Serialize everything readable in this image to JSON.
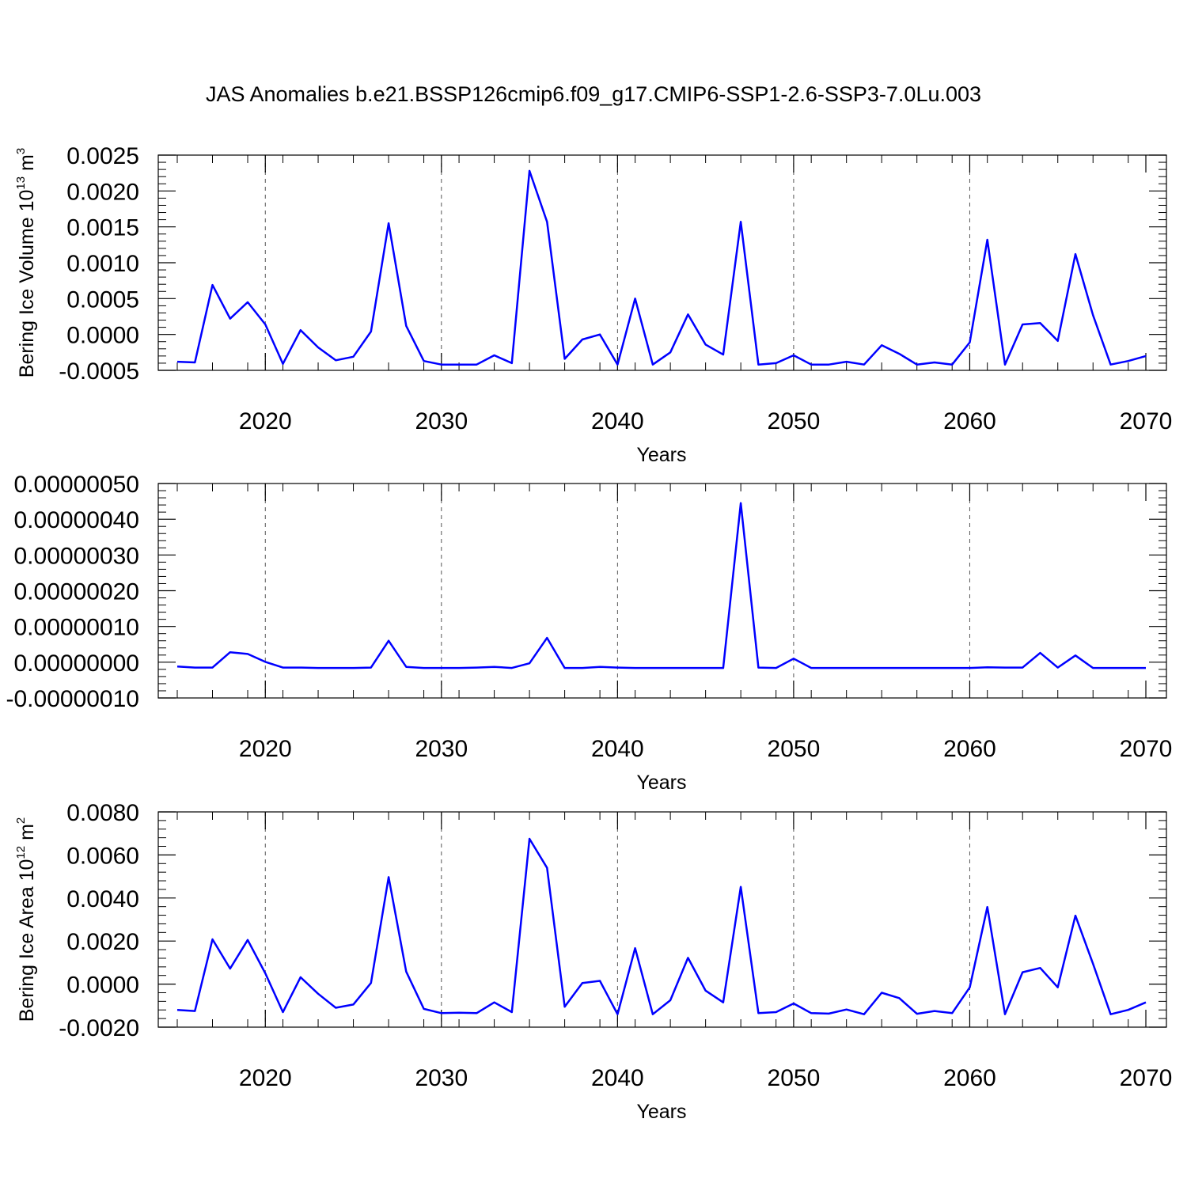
{
  "figure": {
    "title": "JAS Anomalies b.e21.BSSP126cmip6.f09_g17.CMIP6-SSP1-2.6-SSP3-7.0Lu.003"
  },
  "chart_data": [
    {
      "type": "line",
      "title": "",
      "xlabel": "Years",
      "ylabel": "Bering Ice Volume 10",
      "ylabel_sup": "13",
      "ylabel_unit": " m",
      "ylabel_unit_sup": "3",
      "xlim": [
        2015,
        2070
      ],
      "ylim": [
        -0.0005,
        0.0025
      ],
      "x_ticks": [
        "2020",
        "2030",
        "2040",
        "2050",
        "2060",
        "2070"
      ],
      "y_ticks": [
        "-0.0005",
        "0.0000",
        "0.0005",
        "0.0010",
        "0.0015",
        "0.0020",
        "0.0025"
      ],
      "grid": "vertical dashed at major x ticks",
      "line_color": "#0000ff",
      "series": [
        {
          "x": [
            2015,
            2016,
            2017,
            2018,
            2019,
            2020,
            2021,
            2022,
            2023,
            2024,
            2025,
            2026,
            2027,
            2028,
            2029,
            2030,
            2031,
            2032,
            2033,
            2034,
            2035,
            2036,
            2037,
            2038,
            2039,
            2040,
            2041,
            2042,
            2043,
            2044,
            2045,
            2046,
            2047,
            2048,
            2049,
            2050,
            2051,
            2052,
            2053,
            2054,
            2055,
            2056,
            2057,
            2058,
            2059,
            2060,
            2061,
            2062,
            2063,
            2064,
            2065,
            2066,
            2067,
            2068,
            2069,
            2070
          ],
          "values": [
            -0.00038,
            -0.00039,
            0.00069,
            0.00022,
            0.00045,
            0.00014,
            -0.00041,
            6e-05,
            -0.00018,
            -0.00036,
            -0.00031,
            4e-05,
            0.00155,
            0.00012,
            -0.00037,
            -0.00042,
            -0.00042,
            -0.00042,
            -0.00029,
            -0.0004,
            0.00228,
            0.00157,
            -0.00034,
            -7e-05,
            0.0,
            -0.00042,
            0.0005,
            -0.00042,
            -0.00025,
            0.00028,
            -0.00014,
            -0.00028,
            0.00157,
            -0.00042,
            -0.0004,
            -0.00029,
            -0.00042,
            -0.00042,
            -0.00038,
            -0.00042,
            -0.00015,
            -0.00027,
            -0.00042,
            -0.00039,
            -0.00042,
            -0.00011,
            0.00132,
            -0.00042,
            0.00014,
            0.00016,
            -9e-05,
            0.00112,
            0.00027,
            -0.00042,
            -0.00037,
            -0.0003
          ]
        }
      ]
    },
    {
      "type": "line",
      "title": "",
      "xlabel": "Years",
      "ylabel": "",
      "xlim": [
        2015,
        2070
      ],
      "ylim": [
        -1e-07,
        5e-07
      ],
      "x_ticks": [
        "2020",
        "2030",
        "2040",
        "2050",
        "2060",
        "2070"
      ],
      "y_ticks": [
        "-0.00000010",
        "0.00000000",
        "0.00000010",
        "0.00000020",
        "0.00000030",
        "0.00000040",
        "0.00000050"
      ],
      "grid": "vertical dashed at major x ticks",
      "line_color": "#0000ff",
      "series": [
        {
          "x": [
            2015,
            2016,
            2017,
            2018,
            2019,
            2020,
            2021,
            2022,
            2023,
            2024,
            2025,
            2026,
            2027,
            2028,
            2029,
            2030,
            2031,
            2032,
            2033,
            2034,
            2035,
            2036,
            2037,
            2038,
            2039,
            2040,
            2041,
            2042,
            2043,
            2044,
            2045,
            2046,
            2047,
            2048,
            2049,
            2050,
            2051,
            2052,
            2053,
            2054,
            2055,
            2056,
            2057,
            2058,
            2059,
            2060,
            2061,
            2062,
            2063,
            2064,
            2065,
            2066,
            2067,
            2068,
            2069,
            2070
          ],
          "values": [
            -1.2e-08,
            -1.5e-08,
            -1.5e-08,
            2.8e-08,
            2.3e-08,
            1e-09,
            -1.5e-08,
            -1.5e-08,
            -1.6e-08,
            -1.6e-08,
            -1.6e-08,
            -1.5e-08,
            6e-08,
            -1.3e-08,
            -1.6e-08,
            -1.6e-08,
            -1.6e-08,
            -1.5e-08,
            -1.3e-08,
            -1.6e-08,
            -3e-09,
            6.8e-08,
            -1.6e-08,
            -1.6e-08,
            -1.3e-08,
            -1.5e-08,
            -1.6e-08,
            -1.6e-08,
            -1.6e-08,
            -1.6e-08,
            -1.6e-08,
            -1.6e-08,
            4.45e-07,
            -1.5e-08,
            -1.6e-08,
            1e-08,
            -1.6e-08,
            -1.6e-08,
            -1.6e-08,
            -1.6e-08,
            -1.6e-08,
            -1.6e-08,
            -1.6e-08,
            -1.6e-08,
            -1.6e-08,
            -1.6e-08,
            -1.4e-08,
            -1.5e-08,
            -1.5e-08,
            2.6e-08,
            -1.5e-08,
            1.9e-08,
            -1.6e-08,
            -1.6e-08,
            -1.6e-08,
            -1.6e-08
          ]
        }
      ]
    },
    {
      "type": "line",
      "title": "",
      "xlabel": "Years",
      "ylabel": "Bering Ice Area 10",
      "ylabel_sup": "12",
      "ylabel_unit": " m",
      "ylabel_unit_sup": "2",
      "xlim": [
        2015,
        2070
      ],
      "ylim": [
        -0.002,
        0.008
      ],
      "x_ticks": [
        "2020",
        "2030",
        "2040",
        "2050",
        "2060",
        "2070"
      ],
      "y_ticks": [
        "-0.0020",
        "0.0000",
        "0.0020",
        "0.0040",
        "0.0060",
        "0.0080"
      ],
      "grid": "vertical dashed at major x ticks",
      "line_color": "#0000ff",
      "series": [
        {
          "x": [
            2015,
            2016,
            2017,
            2018,
            2019,
            2020,
            2021,
            2022,
            2023,
            2024,
            2025,
            2026,
            2027,
            2028,
            2029,
            2030,
            2031,
            2032,
            2033,
            2034,
            2035,
            2036,
            2037,
            2038,
            2039,
            2040,
            2041,
            2042,
            2043,
            2044,
            2045,
            2046,
            2047,
            2048,
            2049,
            2050,
            2051,
            2052,
            2053,
            2054,
            2055,
            2056,
            2057,
            2058,
            2059,
            2060,
            2061,
            2062,
            2063,
            2064,
            2065,
            2066,
            2067,
            2068,
            2069,
            2070
          ],
          "values": [
            -0.0012,
            -0.00125,
            0.00208,
            0.00072,
            0.00205,
            0.0005,
            -0.0013,
            0.00032,
            -0.00045,
            -0.0011,
            -0.00095,
            5e-05,
            0.00497,
            0.00058,
            -0.00115,
            -0.00135,
            -0.00133,
            -0.00135,
            -0.00085,
            -0.0013,
            0.00675,
            0.0054,
            -0.00105,
            5e-05,
            0.00015,
            -0.0014,
            0.00167,
            -0.0014,
            -0.00075,
            0.00122,
            -0.0003,
            -0.00085,
            0.00452,
            -0.00135,
            -0.0013,
            -0.0009,
            -0.00135,
            -0.00137,
            -0.00118,
            -0.0014,
            -0.0004,
            -0.00065,
            -0.00138,
            -0.00125,
            -0.00135,
            -0.00015,
            0.00358,
            -0.0014,
            0.00055,
            0.00075,
            -0.00015,
            0.00318,
            0.00095,
            -0.0014,
            -0.0012,
            -0.00085
          ]
        }
      ]
    }
  ]
}
